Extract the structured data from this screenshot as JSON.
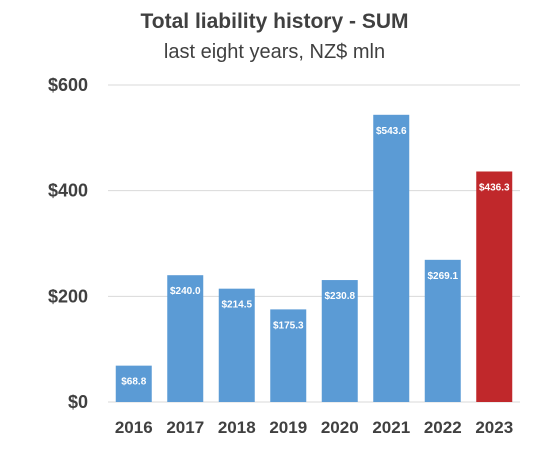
{
  "chart_data": {
    "type": "bar",
    "title": "Total liability history - SUM",
    "subtitle": "last eight years, NZ$ mln",
    "categories": [
      "2016",
      "2017",
      "2018",
      "2019",
      "2020",
      "2021",
      "2022",
      "2023"
    ],
    "values": [
      68.8,
      240.0,
      214.5,
      175.3,
      230.8,
      543.6,
      269.1,
      436.3
    ],
    "value_labels": [
      "$68.8",
      "$240.0",
      "$214.5",
      "$175.3",
      "$230.8",
      "$543.6",
      "$269.1",
      "$436.3"
    ],
    "ylim": [
      0,
      600
    ],
    "yticks": [
      0,
      200,
      400,
      600
    ],
    "ytick_labels": [
      "$0",
      "$200",
      "$400",
      "$600"
    ],
    "xlabel": "",
    "ylabel": "",
    "grid": "horizontal",
    "legend": "none",
    "colors": {
      "default_bar": "#5B9BD5",
      "highlight_bar": "#C0282B",
      "gridline": "#D9D9D9",
      "axis_text": "#404040"
    },
    "highlight_index": 7
  }
}
